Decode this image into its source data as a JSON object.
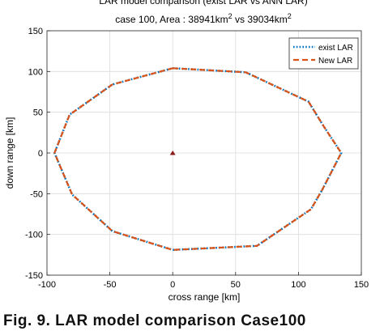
{
  "caption": "Fig. 9. LAR model comparison    Case100",
  "chart_data": {
    "type": "line",
    "title": "LAR model comparison (exist LAR vs ANN LAR)",
    "subtitle": {
      "prefix": "case 100, Area : 38941km",
      "sup1": "2",
      "middle": " vs 39034km",
      "sup2": "2"
    },
    "xlabel": "cross range [km]",
    "ylabel": "down range [km]",
    "xlim": [
      -100,
      150
    ],
    "ylim": [
      -150,
      150
    ],
    "xticks": [
      -100,
      -50,
      0,
      50,
      100,
      150
    ],
    "yticks": [
      -150,
      -100,
      -50,
      0,
      50,
      100,
      150
    ],
    "grid": true,
    "legend_position": "top-right",
    "series": [
      {
        "name": "exist LAR",
        "color": "#0072BD",
        "style": "dotted",
        "x": [
          0,
          58,
          108,
          120,
          134,
          119,
          110,
          67,
          0,
          -48,
          -80,
          -94,
          -82,
          -48,
          0
        ],
        "y": [
          104,
          99,
          63,
          33,
          0,
          -45,
          -69,
          -114,
          -119,
          -96,
          -51,
          0,
          47,
          84,
          104
        ]
      },
      {
        "name": "New LAR",
        "color": "#D95319",
        "style": "dashed",
        "x": [
          0,
          58,
          108,
          120,
          134,
          119,
          110,
          67,
          0,
          -48,
          -80,
          -94,
          -82,
          -48,
          0
        ],
        "y": [
          104,
          99,
          63,
          33,
          0,
          -45,
          -69,
          -114,
          -119,
          -96,
          -51,
          0,
          47,
          84,
          104
        ]
      }
    ],
    "marker": {
      "x": 0,
      "y": 0,
      "color": "#8B1A1A",
      "shape": "triangle"
    }
  }
}
